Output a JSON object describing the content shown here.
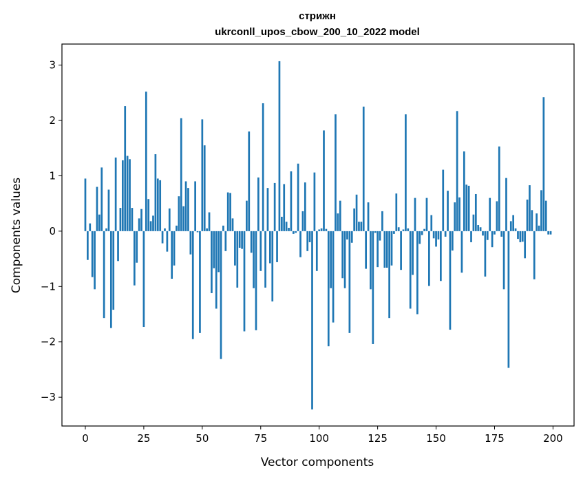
{
  "chart_data": {
    "type": "bar",
    "title": [
      "стрижн",
      "ukrconll_upos_cbow_200_10_2022 model"
    ],
    "xlabel": "Vector components",
    "ylabel": "Components values",
    "xlim": [
      -10,
      209
    ],
    "ylim": [
      -3.52,
      3.38
    ],
    "xticks": [
      0,
      25,
      50,
      75,
      100,
      125,
      150,
      175,
      200
    ],
    "yticks": [
      -3,
      -2,
      -1,
      0,
      1,
      2,
      3
    ],
    "ytick_labels": [
      "−3",
      "−2",
      "−1",
      "0",
      "1",
      "2",
      "3"
    ],
    "grid": false,
    "legend": "none",
    "bar_color": "#1f77b4",
    "values": [
      0.95,
      -0.52,
      0.14,
      -0.83,
      -1.05,
      0.8,
      0.3,
      1.15,
      -1.57,
      0.05,
      0.75,
      -1.75,
      -1.42,
      1.33,
      -0.54,
      0.42,
      1.28,
      2.26,
      1.36,
      1.3,
      0.42,
      -0.98,
      -0.57,
      0.23,
      0.4,
      -1.73,
      2.52,
      0.58,
      0.18,
      0.28,
      1.39,
      0.95,
      0.92,
      -0.22,
      0.05,
      -0.37,
      0.41,
      -0.86,
      -0.62,
      0.1,
      0.63,
      2.04,
      0.45,
      0.9,
      0.78,
      -0.42,
      -1.95,
      0.9,
      -0.02,
      -1.84,
      2.02,
      1.55,
      0.05,
      0.34,
      -1.12,
      -0.67,
      -1.4,
      -0.74,
      -2.31,
      0.1,
      -0.36,
      0.7,
      0.69,
      0.23,
      -0.62,
      -1.02,
      -0.3,
      -0.32,
      -1.81,
      0.55,
      1.8,
      -0.39,
      -1.03,
      -1.79,
      0.97,
      -0.72,
      2.31,
      -1.02,
      0.78,
      -0.58,
      -1.27,
      0.87,
      -0.56,
      3.07,
      0.26,
      0.85,
      0.17,
      0.06,
      1.08,
      -0.05,
      -0.03,
      1.22,
      -0.47,
      0.36,
      0.88,
      -0.36,
      -0.2,
      -3.22,
      1.06,
      -0.72,
      0.03,
      0.05,
      1.82,
      0.04,
      -2.08,
      -1.03,
      -1.65,
      2.11,
      0.32,
      0.55,
      -0.85,
      -1.03,
      -0.15,
      -1.84,
      -0.21,
      0.41,
      0.66,
      0.17,
      0.17,
      2.25,
      -0.68,
      0.52,
      -1.05,
      -2.04,
      -0.03,
      -0.65,
      -0.17,
      0.36,
      -0.66,
      -0.66,
      -1.57,
      -0.62,
      -0.05,
      0.68,
      0.07,
      -0.7,
      0.03,
      2.11,
      0.05,
      -1.4,
      -0.79,
      0.6,
      -1.5,
      -0.23,
      -0.07,
      0.04,
      0.6,
      -0.99,
      0.29,
      -0.13,
      -0.28,
      -0.15,
      -0.9,
      1.11,
      -0.1,
      0.73,
      -1.78,
      -0.35,
      0.52,
      2.17,
      0.61,
      -0.75,
      1.44,
      0.84,
      0.82,
      -0.2,
      0.3,
      0.67,
      0.11,
      0.07,
      -0.08,
      -0.82,
      -0.16,
      0.6,
      -0.29,
      -0.06,
      0.54,
      1.53,
      -0.1,
      -1.05,
      0.96,
      -2.47,
      0.18,
      0.29,
      0.05,
      -0.14,
      -0.2,
      -0.19,
      -0.49,
      0.57,
      0.83,
      0.38,
      -0.87,
      0.32,
      0.1,
      0.74,
      2.42,
      0.55,
      -0.06,
      -0.06
    ]
  }
}
